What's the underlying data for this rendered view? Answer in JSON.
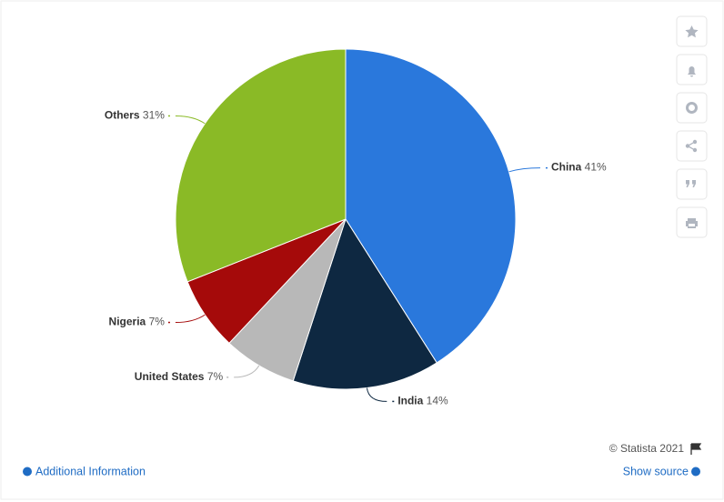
{
  "chart_data": {
    "type": "pie",
    "categories": [
      "China",
      "India",
      "United States",
      "Nigeria",
      "Others"
    ],
    "values": [
      41,
      14,
      7,
      7,
      31
    ],
    "value_labels": [
      "41%",
      "14%",
      "7%",
      "7%",
      "31%"
    ],
    "colors": [
      "#2a78dc",
      "#0e2841",
      "#b8b8b8",
      "#a50a0a",
      "#8aba26"
    ]
  },
  "footer": {
    "credit": "© Statista 2021",
    "additional_info": "Additional Information",
    "show_source": "Show source"
  }
}
